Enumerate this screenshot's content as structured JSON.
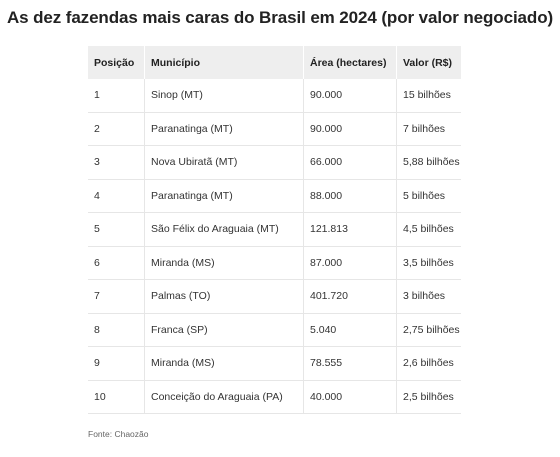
{
  "title": "As dez fazendas mais caras do Brasil em 2024 (por valor negociado)",
  "table": {
    "headers": [
      "Posição",
      "Município",
      "Área (hectares)",
      "Valor (R$)"
    ],
    "rows": [
      [
        "1",
        "Sinop (MT)",
        "90.000",
        "15 bilhões"
      ],
      [
        "2",
        "Paranatinga (MT)",
        "90.000",
        "7 bilhões"
      ],
      [
        "3",
        "Nova Ubiratã (MT)",
        "66.000",
        "5,88 bilhões"
      ],
      [
        "4",
        "Paranatinga (MT)",
        "88.000",
        "5 bilhões"
      ],
      [
        "5",
        "São Félix do Araguaia (MT)",
        "121.813",
        "4,5 bilhões"
      ],
      [
        "6",
        "Miranda (MS)",
        "87.000",
        "3,5 bilhões"
      ],
      [
        "7",
        "Palmas (TO)",
        "401.720",
        "3 bilhões"
      ],
      [
        "8",
        "Franca (SP)",
        "5.040",
        "2,75 bilhões"
      ],
      [
        "9",
        "Miranda (MS)",
        "78.555",
        "2,6 bilhões"
      ],
      [
        "10",
        "Conceição do Araguaia (PA)",
        "40.000",
        "2,5 bilhões"
      ]
    ]
  },
  "source": "Fonte: Chaozão"
}
